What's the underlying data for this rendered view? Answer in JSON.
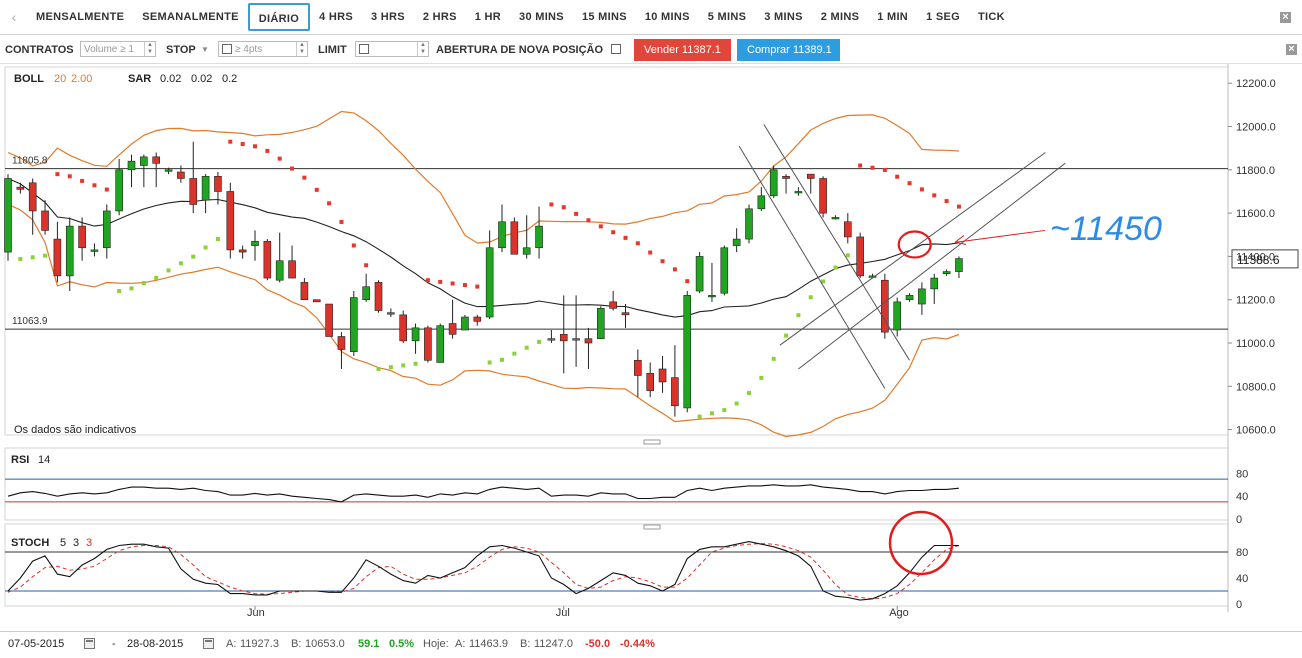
{
  "timeframes": [
    "MENSALMENTE",
    "SEMANALMENTE",
    "DIÁRIO",
    "4 HRS",
    "3 HRS",
    "2 HRS",
    "1 HR",
    "30 MINS",
    "15 MINS",
    "10 MINS",
    "5 MINS",
    "3 MINS",
    "2 MINS",
    "1 MIN",
    "1 SEG",
    "TICK"
  ],
  "active_timeframe": "DIÁRIO",
  "order_bar": {
    "contracts_label": "CONTRATOS",
    "volume_placeholder": "Volume ≥ 1",
    "stop_label": "STOP",
    "stop_placeholder": "≥ 4pts",
    "limit_label": "LIMIT",
    "new_position_label": "ABERTURA DE NOVA POSIÇÃO",
    "sell_label": "Vender 11387.1",
    "buy_label": "Comprar 11389.1"
  },
  "colors": {
    "up": "#1fa51f",
    "down": "#d9332b",
    "boll": "#e07b2a",
    "sar_up": "#8bd23a",
    "sar_down": "#e8362a",
    "annotation_red": "#e31b1b",
    "annotation_blue": "#2b8be6",
    "rsi_upper": "#1f5fb0",
    "rsi_lower": "#c0392b"
  },
  "chart_data": [
    {
      "type": "candlestick",
      "indicator_label": "BOLL",
      "boll_params": [
        "20",
        "2.00"
      ],
      "sar_label": "SAR",
      "sar_params": [
        "0.02",
        "0.02",
        "0.2"
      ],
      "y_ticks": [
        "12200.0",
        "12000.0",
        "11800.0",
        "11600.0",
        "11400.0",
        "11200.0",
        "11000.0",
        "10800.0",
        "10600.0"
      ],
      "ylim": [
        10575,
        12275
      ],
      "x_labels": [
        {
          "label": "Jun",
          "index": 20
        },
        {
          "label": "Jul",
          "index": 45
        },
        {
          "label": "Ago",
          "index": 72
        }
      ],
      "horizontal_levels": [
        {
          "value": 11805.8,
          "label": "11805.8"
        },
        {
          "value": 11063.9,
          "label": "11063.9"
        }
      ],
      "current_price": "11388.6",
      "note": "Os dados são indicativos",
      "annotation": "~11450",
      "candles": [
        [
          11420,
          11780,
          11380,
          11760
        ],
        [
          11720,
          11740,
          11690,
          11710
        ],
        [
          11740,
          11760,
          11500,
          11610
        ],
        [
          11610,
          11660,
          11500,
          11520
        ],
        [
          11480,
          11560,
          11280,
          11310
        ],
        [
          11310,
          11580,
          11240,
          11540
        ],
        [
          11540,
          11580,
          11380,
          11440
        ],
        [
          11430,
          11460,
          11400,
          11430
        ],
        [
          11440,
          11640,
          11390,
          11610
        ],
        [
          11610,
          11850,
          11590,
          11800
        ],
        [
          11800,
          11870,
          11720,
          11840
        ],
        [
          11820,
          11870,
          11720,
          11860
        ],
        [
          11860,
          11880,
          11720,
          11830
        ],
        [
          11800,
          11810,
          11780,
          11800
        ],
        [
          11790,
          11820,
          11740,
          11760
        ],
        [
          11760,
          11930,
          11600,
          11640
        ],
        [
          11660,
          11780,
          11600,
          11770
        ],
        [
          11770,
          11790,
          11640,
          11700
        ],
        [
          11700,
          11740,
          11390,
          11430
        ],
        [
          11430,
          11450,
          11390,
          11420
        ],
        [
          11450,
          11520,
          11380,
          11470
        ],
        [
          11470,
          11480,
          11290,
          11300
        ],
        [
          11290,
          11510,
          11280,
          11380
        ],
        [
          11380,
          11450,
          11300,
          11300
        ],
        [
          11280,
          11300,
          11200,
          11200
        ],
        [
          11200,
          11200,
          11190,
          11190
        ],
        [
          11180,
          11180,
          11030,
          11030
        ],
        [
          11030,
          11050,
          10880,
          10970
        ],
        [
          10960,
          11240,
          10940,
          11210
        ],
        [
          11200,
          11320,
          11190,
          11260
        ],
        [
          11280,
          11290,
          11140,
          11150
        ],
        [
          11140,
          11160,
          11120,
          11140
        ],
        [
          11130,
          11150,
          11000,
          11010
        ],
        [
          11010,
          11090,
          10950,
          11070
        ],
        [
          11070,
          11080,
          10910,
          10920
        ],
        [
          10910,
          11090,
          10910,
          11080
        ],
        [
          11090,
          11200,
          11020,
          11040
        ],
        [
          11060,
          11130,
          11060,
          11120
        ],
        [
          11120,
          11130,
          11080,
          11100
        ],
        [
          11120,
          11520,
          11110,
          11440
        ],
        [
          11440,
          11640,
          11420,
          11560
        ],
        [
          11560,
          11580,
          11410,
          11410
        ],
        [
          11410,
          11590,
          11390,
          11440
        ],
        [
          11440,
          11630,
          11390,
          11540
        ],
        [
          11020,
          11060,
          11000,
          11020
        ],
        [
          11040,
          11220,
          10860,
          11010
        ],
        [
          11020,
          11220,
          10890,
          11020
        ],
        [
          11020,
          11070,
          10880,
          11000
        ],
        [
          11020,
          11170,
          11020,
          11160
        ],
        [
          11190,
          11240,
          11150,
          11160
        ],
        [
          11140,
          11180,
          11070,
          11130
        ],
        [
          10920,
          10970,
          10750,
          10850
        ],
        [
          10860,
          10910,
          10750,
          10780
        ],
        [
          10880,
          10940,
          10770,
          10820
        ],
        [
          10840,
          10990,
          10660,
          10710
        ],
        [
          10700,
          11240,
          10680,
          11220
        ],
        [
          11240,
          11420,
          11230,
          11400
        ],
        [
          11220,
          11370,
          11190,
          11220
        ],
        [
          11230,
          11450,
          11220,
          11440
        ],
        [
          11450,
          11530,
          11420,
          11480
        ],
        [
          11480,
          11640,
          11460,
          11620
        ],
        [
          11620,
          11720,
          11610,
          11680
        ],
        [
          11680,
          11820,
          11670,
          11800
        ],
        [
          11770,
          11780,
          11690,
          11760
        ],
        [
          11700,
          11720,
          11680,
          11700
        ],
        [
          11780,
          11780,
          11690,
          11760
        ],
        [
          11760,
          11770,
          11580,
          11600
        ],
        [
          11580,
          11590,
          11570,
          11580
        ],
        [
          11560,
          11600,
          11460,
          11490
        ],
        [
          11490,
          11510,
          11300,
          11310
        ],
        [
          11310,
          11320,
          11300,
          11310
        ],
        [
          11290,
          11320,
          11020,
          11050
        ],
        [
          11060,
          11210,
          11030,
          11190
        ],
        [
          11200,
          11230,
          11190,
          11220
        ],
        [
          11180,
          11280,
          11130,
          11250
        ],
        [
          11250,
          11320,
          11180,
          11300
        ],
        [
          11320,
          11340,
          11310,
          11330
        ],
        [
          11330,
          11400,
          11300,
          11390
        ]
      ]
    },
    {
      "type": "line",
      "label": "RSI",
      "params": [
        "14"
      ],
      "y_ticks": [
        "80",
        "40",
        "0"
      ],
      "levels": [
        70,
        30
      ],
      "ylim": [
        0,
        100
      ],
      "values": [
        40,
        46,
        48,
        45,
        40,
        44,
        46,
        44,
        46,
        52,
        56,
        56,
        54,
        54,
        52,
        54,
        50,
        48,
        42,
        42,
        45,
        42,
        44,
        40,
        38,
        36,
        34,
        30,
        42,
        44,
        42,
        40,
        40,
        42,
        38,
        44,
        42,
        46,
        44,
        52,
        56,
        54,
        52,
        54,
        40,
        42,
        42,
        40,
        46,
        44,
        44,
        36,
        36,
        38,
        38,
        50,
        54,
        50,
        54,
        56,
        58,
        58,
        60,
        58,
        58,
        60,
        56,
        54,
        52,
        48,
        48,
        44,
        48,
        50,
        50,
        52,
        52,
        54
      ]
    },
    {
      "type": "line",
      "label": "STOCH",
      "params": [
        "5",
        "3",
        "3"
      ],
      "y_ticks": [
        "80",
        "40",
        "0"
      ],
      "levels": [
        80,
        20
      ],
      "ylim": [
        0,
        100
      ],
      "k": [
        20,
        40,
        66,
        74,
        46,
        42,
        60,
        70,
        84,
        90,
        92,
        92,
        88,
        86,
        54,
        38,
        32,
        30,
        16,
        16,
        14,
        14,
        20,
        20,
        20,
        20,
        18,
        18,
        40,
        68,
        58,
        46,
        36,
        32,
        44,
        40,
        48,
        56,
        74,
        88,
        90,
        86,
        80,
        74,
        40,
        30,
        16,
        24,
        36,
        48,
        44,
        32,
        28,
        20,
        30,
        70,
        84,
        88,
        88,
        92,
        96,
        92,
        88,
        82,
        74,
        58,
        20,
        12,
        10,
        6,
        8,
        16,
        28,
        48,
        72,
        90,
        90,
        90
      ],
      "d": [
        18,
        26,
        42,
        56,
        58,
        52,
        54,
        58,
        70,
        82,
        88,
        90,
        90,
        88,
        76,
        60,
        42,
        34,
        26,
        20,
        16,
        15,
        16,
        18,
        20,
        20,
        19,
        18,
        24,
        42,
        56,
        58,
        46,
        38,
        38,
        40,
        44,
        48,
        58,
        72,
        84,
        88,
        86,
        80,
        64,
        48,
        30,
        24,
        26,
        36,
        42,
        40,
        34,
        26,
        26,
        40,
        60,
        80,
        86,
        90,
        92,
        93,
        92,
        88,
        82,
        72,
        52,
        30,
        14,
        10,
        8,
        10,
        16,
        30,
        48,
        68,
        84,
        90
      ]
    }
  ],
  "footer": {
    "date_from": "07-05-2015",
    "date_sep": "-",
    "date_to": "28-08-2015",
    "high_label": "A:",
    "high_value": "11927.3",
    "low_label": "B:",
    "low_value": "10653.0",
    "change": "59.1",
    "change_pct": "0.5%",
    "today_label": "Hoje:",
    "today_high_label": "A:",
    "today_high": "11463.9",
    "today_low_label": "B:",
    "today_low": "11247.0",
    "today_change": "-50.0",
    "today_change_pct": "-0.44%"
  }
}
